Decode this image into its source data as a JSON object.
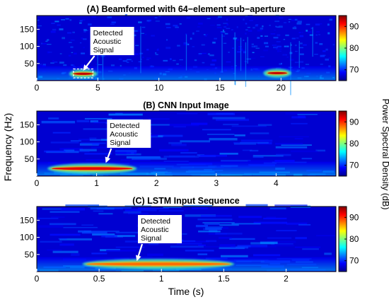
{
  "chart_data": {
    "type": "heatmap",
    "colormap": "jet",
    "shared_ylabel": "Frequency (Hz)",
    "shared_xlabel": "Time (s)",
    "colorbar_label": "Power Spectral Density (dB)",
    "panels": [
      {
        "title": "(A) Beamformed with 64−element sub−aperture",
        "xlim": [
          0,
          24.5
        ],
        "ylim": [
          0,
          190
        ],
        "xticks": [
          "0",
          "5",
          "10",
          "15",
          "20"
        ],
        "yticks": [
          "50",
          "100",
          "150"
        ],
        "clim": [
          65,
          95
        ],
        "cbar_ticks": [
          "70",
          "80",
          "90"
        ],
        "annotation": {
          "text": [
            "Detected",
            "Acoustic",
            "Signal"
          ],
          "target": {
            "x": 3.8,
            "y": 20
          }
        },
        "highlight_box": {
          "x": [
            3.0,
            4.6
          ],
          "y": [
            8,
            34
          ]
        },
        "features": [
          {
            "t0": 3.0,
            "t1": 4.6,
            "f": 20,
            "fw": 7,
            "level": 93
          },
          {
            "t0": 18.9,
            "t1": 20.5,
            "f": 22,
            "fw": 7,
            "level": 93
          }
        ]
      },
      {
        "title": "(B) CNN Input Image",
        "xlim": [
          0,
          5
        ],
        "ylim": [
          0,
          190
        ],
        "xticks": [
          "0",
          "1",
          "2",
          "3",
          "4"
        ],
        "yticks": [
          "50",
          "100",
          "150"
        ],
        "clim": [
          65,
          95
        ],
        "cbar_ticks": [
          "70",
          "80",
          "90"
        ],
        "annotation": {
          "text": [
            "Detected",
            "Acoustic",
            "Signal"
          ],
          "target": {
            "x": 1.15,
            "y": 30
          }
        },
        "features": [
          {
            "t0": 0.25,
            "t1": 1.6,
            "f": 22,
            "fw": 9,
            "level": 92
          }
        ]
      },
      {
        "title": "(C) LSTM Input Sequence",
        "xlim": [
          0,
          2.4
        ],
        "ylim": [
          0,
          190
        ],
        "xticks": [
          "0",
          "0.5",
          "1",
          "1.5",
          "2"
        ],
        "yticks": [
          "50",
          "100",
          "150"
        ],
        "clim": [
          65,
          95
        ],
        "cbar_ticks": [
          "70",
          "80",
          "90"
        ],
        "annotation": {
          "text": [
            "Detected",
            "Acoustic",
            "Signal"
          ],
          "target": {
            "x": 0.8,
            "y": 22
          }
        },
        "features": [
          {
            "t0": 0.4,
            "t1": 1.55,
            "f": 22,
            "fw": 9,
            "level": 88
          }
        ]
      }
    ]
  }
}
